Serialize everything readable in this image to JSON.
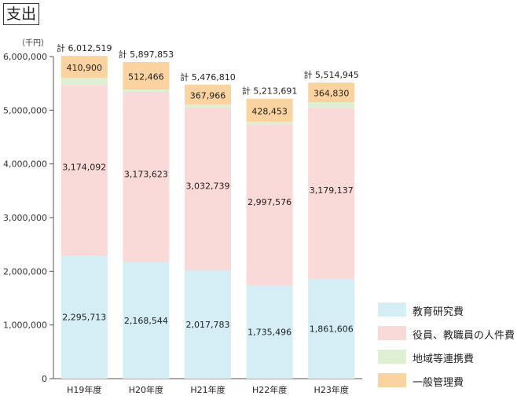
{
  "page": {
    "title": "支出",
    "unit_label": "（千円）"
  },
  "chart_data": {
    "type": "bar",
    "stacked": true,
    "categories": [
      "H19年度",
      "H20年度",
      "H21年度",
      "H22年度",
      "H23年度"
    ],
    "series": [
      {
        "name": "教育研究費",
        "color": "#d5edf5",
        "values": [
          2295713,
          2168544,
          2017783,
          1735496,
          1861606
        ]
      },
      {
        "name": "役員、教職員の人件費",
        "color": "#fad9d9",
        "values": [
          3174092,
          3173623,
          3032739,
          2997576,
          3179137
        ]
      },
      {
        "name": "地域等連携費",
        "color": "#deefd3",
        "values": [
          131814,
          43220,
          58322,
          52167,
          109371
        ]
      },
      {
        "name": "一般管理費",
        "color": "#fbd3a1",
        "values": [
          410900,
          512466,
          367966,
          428453,
          364830
        ]
      }
    ],
    "totals": [
      "計 6,012,519",
      "計 5,897,853",
      "計 5,476,810",
      "計 5,213,691",
      "計 5,514,945"
    ],
    "yticks": [
      "0",
      "1,000,000",
      "2,000,000",
      "3,000,000",
      "4,000,000",
      "5,000,000",
      "6,000,000"
    ],
    "ylim": [
      0,
      6000000
    ],
    "legend_position": "bottom-right"
  }
}
